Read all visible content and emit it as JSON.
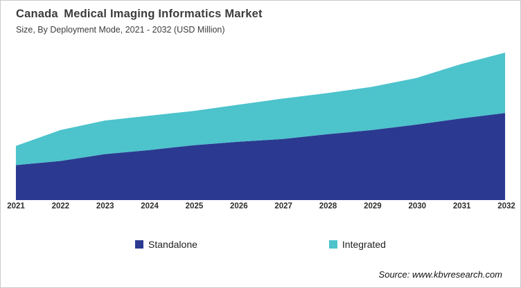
{
  "header": {
    "title": "Canada Medical Imaging Informatics Market",
    "subtitle": "Size, By Deployment Mode, 2021 - 2032 (USD Million)"
  },
  "legend": [
    {
      "label": "Standalone",
      "color": "#2b3a90"
    },
    {
      "label": "Integrated",
      "color": "#4dc3cc"
    }
  ],
  "source": "Source: www.kbvresearch.com",
  "colors": {
    "standalone": "#2b3a90",
    "integrated": "#4dc3cc",
    "text": "#3c3c3c",
    "background": "#ffffff"
  },
  "chart_data": {
    "type": "area",
    "stacked": true,
    "title": "Canada Medical Imaging Informatics Market",
    "subtitle": "Size, By Deployment Mode, 2021 - 2032 (USD Million)",
    "categories": [
      "2021",
      "2022",
      "2023",
      "2024",
      "2025",
      "2026",
      "2027",
      "2028",
      "2029",
      "2030",
      "2031",
      "2032"
    ],
    "series": [
      {
        "name": "Standalone",
        "color": "#2b3a90",
        "values": [
          51,
          57,
          67,
          73,
          80,
          85,
          89,
          96,
          102,
          110,
          119,
          127
        ]
      },
      {
        "name": "Integrated",
        "color": "#4dc3cc",
        "values": [
          28,
          45,
          49,
          50,
          50,
          54,
          59,
          60,
          63,
          68,
          79,
          88
        ]
      }
    ],
    "totals": [
      79,
      102,
      116,
      123,
      130,
      139,
      148,
      156,
      165,
      178,
      198,
      215
    ],
    "xlabel": "",
    "ylabel": "",
    "ylim": [
      0,
      215
    ],
    "y_axis_labels_visible": false,
    "grid": false,
    "legend_position": "bottom"
  }
}
